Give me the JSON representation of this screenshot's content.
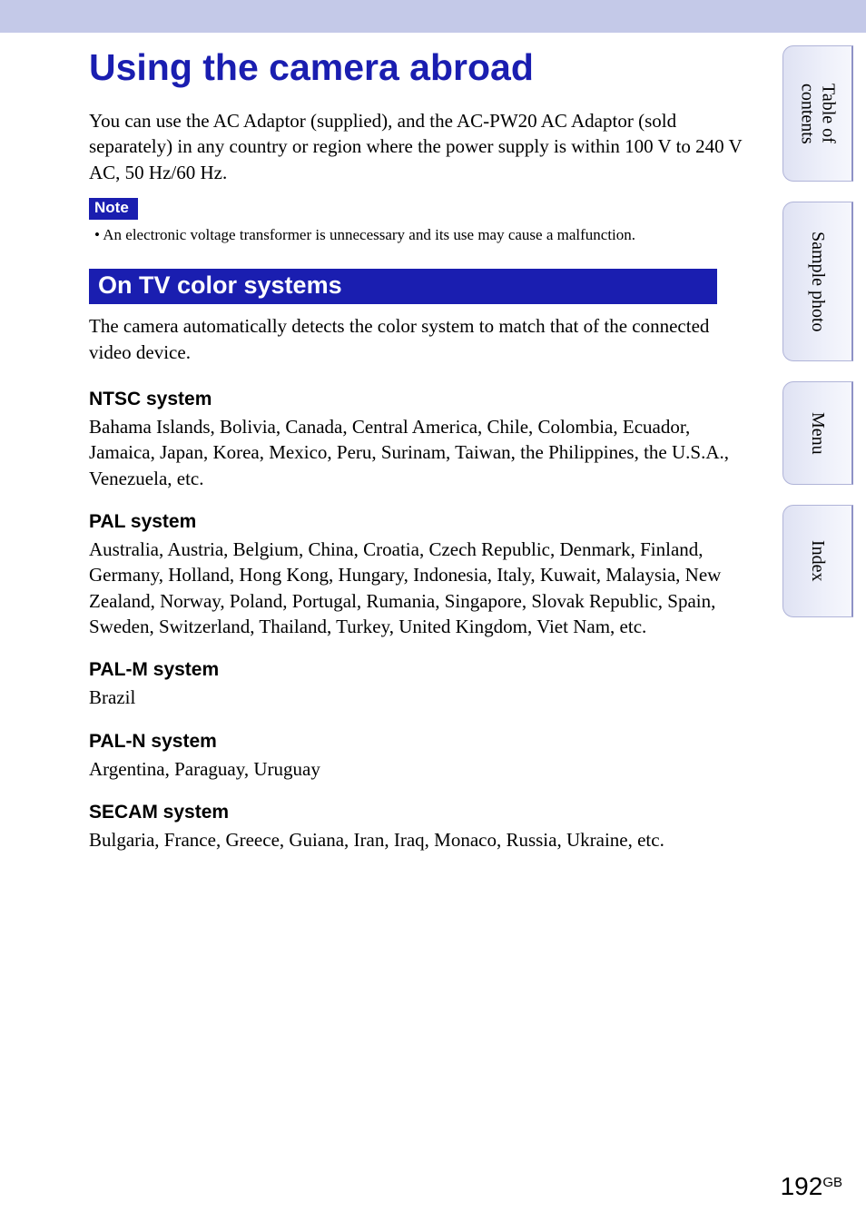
{
  "page": {
    "title": "Using the camera abroad",
    "intro": "You can use the AC Adaptor (supplied), and the AC-PW20 AC Adaptor (sold separately) in any country or region where the power supply is within 100 V to 240 V AC, 50 Hz/60 Hz.",
    "note_label": "Note",
    "note_item": "An electronic voltage transformer is unnecessary and its use may cause a malfunction.",
    "section_heading": "On TV color systems",
    "section_intro": "The camera automatically detects the color system to match that of the connected video device.",
    "systems": {
      "ntsc": {
        "title": "NTSC system",
        "body": "Bahama Islands, Bolivia, Canada, Central America, Chile, Colombia, Ecuador, Jamaica, Japan, Korea, Mexico, Peru, Surinam, Taiwan, the Philippines, the U.S.A., Venezuela, etc."
      },
      "pal": {
        "title": "PAL system",
        "body": "Australia, Austria, Belgium, China, Croatia, Czech Republic, Denmark, Finland, Germany, Holland, Hong Kong, Hungary, Indonesia, Italy, Kuwait, Malaysia, New Zealand, Norway, Poland, Portugal, Rumania, Singapore, Slovak Republic, Spain, Sweden, Switzerland, Thailand, Turkey, United Kingdom, Viet Nam, etc."
      },
      "palm": {
        "title": "PAL-M system",
        "body": "Brazil"
      },
      "paln": {
        "title": "PAL-N system",
        "body": "Argentina, Paraguay, Uruguay"
      },
      "secam": {
        "title": "SECAM system",
        "body": "Bulgaria, France, Greece, Guiana, Iran, Iraq, Monaco, Russia, Ukraine, etc."
      }
    },
    "page_number": "192",
    "page_number_suffix": "GB"
  },
  "tabs": {
    "toc": "Table of\ncontents",
    "sample_photo": "Sample photo",
    "menu": "Menu",
    "index": "Index"
  },
  "colors": {
    "title_blue": "#1a1eb0",
    "top_band": "#c4c9e8",
    "tab_border": "#b0b4d8"
  }
}
